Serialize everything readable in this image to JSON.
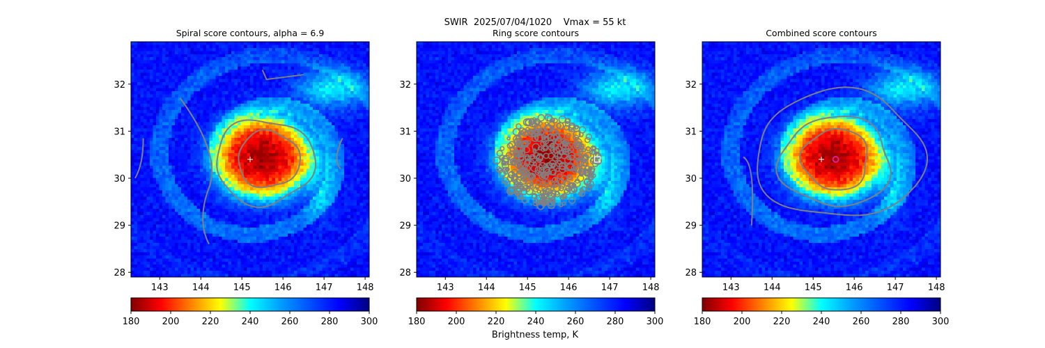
{
  "suptitle": {
    "line1": "SWIR  2025/07/04/1020    Vmax = 55 kt"
  },
  "colorbar_label": "Brightness temp, K",
  "chart_data": [
    {
      "type": "heatmap",
      "title": "Spiral score contours, alpha =  6.9",
      "overlay": "contour",
      "overlay_color": "#808080",
      "xlim": [
        142.3,
        148.1
      ],
      "ylim": [
        27.9,
        32.9
      ],
      "xticks": [
        143,
        144,
        145,
        146,
        147,
        148
      ],
      "yticks": [
        28,
        29,
        30,
        31,
        32
      ],
      "center_marker": {
        "x": 145.2,
        "y": 30.4,
        "symbol": "+"
      },
      "colorbar": {
        "min": 180,
        "max": 300,
        "ticks": [
          180,
          200,
          220,
          240,
          260,
          280,
          300
        ],
        "colormap": "jet_r"
      }
    },
    {
      "type": "heatmap",
      "title": "Ring score contours",
      "overlay": "contour",
      "overlay_color": "#808080",
      "xlim": [
        142.3,
        148.1
      ],
      "ylim": [
        27.9,
        32.9
      ],
      "xticks": [
        143,
        144,
        145,
        146,
        147,
        148
      ],
      "yticks": [
        28,
        29,
        30,
        31,
        32
      ],
      "center_marker": {
        "x": 146.7,
        "y": 30.4,
        "symbol": "square"
      },
      "colorbar": {
        "min": 180,
        "max": 300,
        "ticks": [
          180,
          200,
          220,
          240,
          260,
          280,
          300
        ],
        "colormap": "jet_r"
      }
    },
    {
      "type": "heatmap",
      "title": "Combined score contours",
      "overlay": "contour",
      "overlay_color": "#808080",
      "xlim": [
        142.3,
        148.1
      ],
      "ylim": [
        27.9,
        32.9
      ],
      "xticks": [
        143,
        144,
        145,
        146,
        147,
        148
      ],
      "yticks": [
        28,
        29,
        30,
        31,
        32
      ],
      "center_marker": {
        "x": 145.2,
        "y": 30.4,
        "symbol": "+"
      },
      "combined_marker": {
        "x": 145.55,
        "y": 30.4,
        "symbol": "circle",
        "color": "#e0209a"
      },
      "colorbar": {
        "min": 180,
        "max": 300,
        "ticks": [
          180,
          200,
          220,
          240,
          260,
          280,
          300
        ],
        "colormap": "jet_r"
      }
    }
  ]
}
